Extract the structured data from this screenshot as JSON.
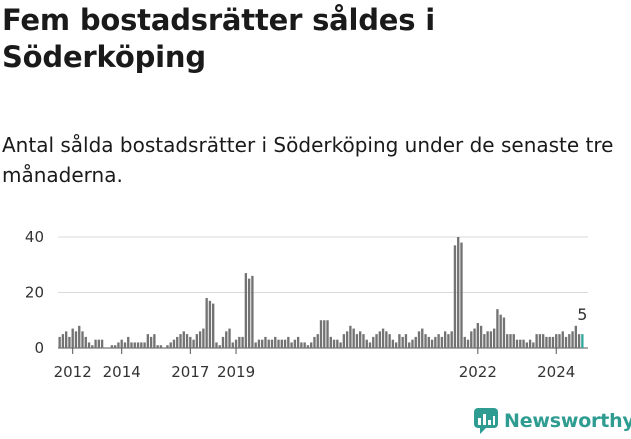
{
  "header": {
    "title": "Fem bostadsrätter såldes i Söderköping",
    "subtitle": "Antal sålda bostadsrätter i Söderköping under de senaste tre månaderna."
  },
  "brand": {
    "name": "Newsworthy",
    "color": "#2f9c91"
  },
  "chart_data": {
    "type": "bar",
    "title": "",
    "xlabel": "",
    "ylabel": "",
    "ylim": [
      0,
      40
    ],
    "yticks": [
      0,
      20,
      40
    ],
    "xticks": [
      "2012",
      "2014",
      "2017",
      "2019",
      "2022",
      "2024"
    ],
    "grid": true,
    "colors": {
      "bar": "#737373",
      "highlight": "#33a89d"
    },
    "highlight_label": "5",
    "series": [
      {
        "values": [
          4,
          5,
          6,
          4,
          7,
          6,
          8,
          6,
          4,
          2,
          1,
          3,
          3,
          3,
          0,
          0,
          1,
          1,
          2,
          3,
          2,
          4,
          2,
          2,
          2,
          2,
          2,
          5,
          4,
          5,
          1,
          1,
          0,
          1,
          2,
          3,
          4,
          5,
          6,
          5,
          4,
          3,
          5,
          6,
          7,
          18,
          17,
          16,
          2,
          1,
          4,
          6,
          7,
          2,
          3,
          4,
          4,
          27,
          25,
          26,
          2,
          3,
          3,
          4,
          3,
          3,
          4,
          3,
          3,
          3,
          4,
          2,
          3,
          4,
          2,
          2,
          1,
          2,
          4,
          5,
          10,
          10,
          10,
          4,
          3,
          3,
          2,
          5,
          6,
          8,
          7,
          5,
          6,
          5,
          3,
          2,
          4,
          5,
          6,
          7,
          6,
          5,
          3,
          2,
          5,
          4,
          5,
          2,
          3,
          4,
          6,
          7,
          5,
          4,
          3,
          4,
          5,
          4,
          6,
          5,
          6,
          37,
          40,
          38,
          4,
          3,
          6,
          7,
          9,
          8,
          5,
          6,
          6,
          7,
          14,
          12,
          11,
          5,
          5,
          5,
          3,
          3,
          3,
          2,
          3,
          2,
          5,
          5,
          5,
          4,
          4,
          4,
          5,
          5,
          6,
          4,
          5,
          6,
          8,
          5,
          5
        ]
      }
    ]
  }
}
